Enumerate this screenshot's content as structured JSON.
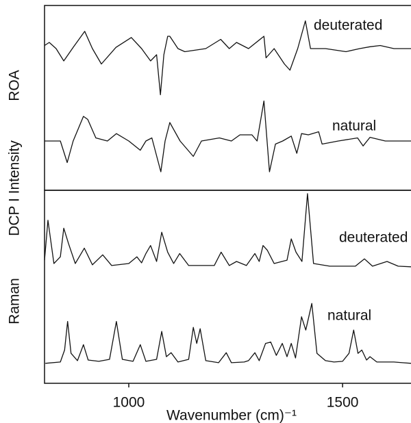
{
  "chart_data": {
    "type": "line",
    "xlabel": "Wavenumber (cm)⁻¹",
    "ylabel": "DCP I Intensity",
    "xlim": [
      803,
      1660
    ],
    "xticks": [
      1000,
      1500
    ],
    "panels": [
      {
        "label": "ROA",
        "ylim": [
          -80,
          70
        ],
        "series": [
          {
            "name": "deuterated",
            "color": "#111111",
            "x": [
              803,
              814,
              830,
              848,
              870,
              897,
              915,
              936,
              970,
              1006,
              1030,
              1051,
              1065,
              1074,
              1082,
              1091,
              1096,
              1115,
              1131,
              1180,
              1215,
              1235,
              1252,
              1280,
              1316,
              1321,
              1340,
              1364,
              1377,
              1395,
              1413,
              1425,
              1460,
              1508,
              1540,
              1564,
              1588,
              1620,
              1660
            ],
            "values": [
              5,
              10,
              0,
              -20,
              2,
              28,
              0,
              -25,
              2,
              18,
              0,
              -20,
              -10,
              -75,
              -10,
              20,
              20,
              0,
              -5,
              0,
              15,
              0,
              10,
              0,
              20,
              -15,
              0,
              -25,
              -35,
              0,
              45,
              0,
              0,
              -5,
              0,
              3,
              5,
              0,
              0
            ]
          },
          {
            "name": "natural",
            "color": "#111111",
            "x": [
              803,
              840,
              856,
              870,
              894,
              904,
              923,
              950,
              971,
              1000,
              1027,
              1040,
              1054,
              1075,
              1085,
              1096,
              1120,
              1151,
              1170,
              1212,
              1240,
              1260,
              1288,
              1300,
              1316,
              1329,
              1343,
              1360,
              1380,
              1393,
              1404,
              1420,
              1444,
              1452,
              1490,
              1535,
              1548,
              1564,
              1600,
              1660
            ],
            "values": [
              0,
              0,
              -35,
              0,
              40,
              35,
              5,
              0,
              12,
              0,
              -15,
              0,
              5,
              -50,
              0,
              30,
              0,
              -25,
              0,
              5,
              0,
              10,
              10,
              0,
              65,
              -50,
              -5,
              0,
              8,
              -20,
              12,
              10,
              15,
              -5,
              0,
              5,
              -8,
              6,
              0,
              0
            ]
          }
        ]
      },
      {
        "label": "Raman",
        "ylim": [
          -30,
          115
        ],
        "series": [
          {
            "name": "deuterated",
            "color": "#111111",
            "x": [
              803,
              811,
              825,
              840,
              848,
              859,
              875,
              896,
              915,
              939,
              960,
              1000,
              1019,
              1030,
              1040,
              1051,
              1065,
              1077,
              1091,
              1105,
              1119,
              1140,
              1200,
              1216,
              1235,
              1252,
              1275,
              1295,
              1305,
              1314,
              1324,
              1340,
              1370,
              1380,
              1391,
              1405,
              1418,
              1432,
              1470,
              1530,
              1551,
              1570,
              1604,
              1630,
              1660
            ],
            "values": [
              10,
              70,
              5,
              15,
              58,
              35,
              5,
              28,
              3,
              18,
              2,
              5,
              15,
              6,
              20,
              32,
              8,
              52,
              22,
              5,
              20,
              2,
              2,
              22,
              2,
              8,
              2,
              20,
              8,
              32,
              25,
              5,
              10,
              42,
              22,
              8,
              110,
              5,
              1,
              1,
              12,
              1,
              8,
              1,
              0
            ]
          },
          {
            "name": "natural",
            "color": "#111111",
            "x": [
              805,
              840,
              850,
              857,
              865,
              880,
              894,
              905,
              930,
              955,
              971,
              985,
              1010,
              1027,
              1040,
              1065,
              1077,
              1088,
              1099,
              1115,
              1140,
              1151,
              1159,
              1167,
              1180,
              1210,
              1228,
              1240,
              1270,
              1280,
              1295,
              1305,
              1320,
              1332,
              1345,
              1359,
              1370,
              1380,
              1390,
              1404,
              1414,
              1428,
              1440,
              1460,
              1480,
              1500,
              1515,
              1526,
              1536,
              1545,
              1556,
              1564,
              1580,
              1620,
              1640,
              1660
            ],
            "values": [
              0,
              2,
              20,
              63,
              15,
              4,
              28,
              5,
              3,
              6,
              63,
              6,
              3,
              28,
              3,
              6,
              48,
              10,
              16,
              2,
              6,
              54,
              30,
              52,
              4,
              1,
              16,
              1,
              2,
              4,
              16,
              4,
              30,
              32,
              12,
              30,
              10,
              30,
              8,
              70,
              50,
              90,
              15,
              4,
              2,
              3,
              15,
              50,
              15,
              20,
              5,
              10,
              2,
              2,
              1,
              0
            ]
          }
        ]
      }
    ]
  }
}
